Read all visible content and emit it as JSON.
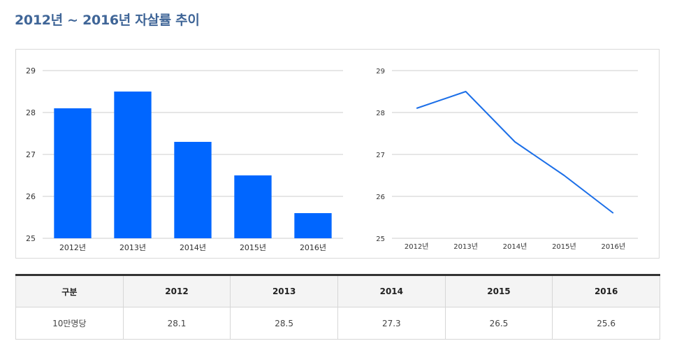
{
  "page": {
    "title": "2012년 ~ 2016년 자살률 추이"
  },
  "colors": {
    "title": "#3f6597",
    "bar": "#0066ff",
    "line": "#1c6fe8",
    "grid": "#cccccc"
  },
  "chart_data": [
    {
      "type": "bar",
      "categories": [
        "2012년",
        "2013년",
        "2014년",
        "2015년",
        "2016년"
      ],
      "values": [
        28.1,
        28.5,
        27.3,
        26.5,
        25.6
      ],
      "ylim": [
        25,
        29
      ],
      "yticks": [
        "25",
        "26",
        "27",
        "28",
        "29"
      ],
      "grid": true,
      "legend": "none"
    },
    {
      "type": "line",
      "categories": [
        "2012년",
        "2013년",
        "2014년",
        "2015년",
        "2016년"
      ],
      "values": [
        28.1,
        28.5,
        27.3,
        26.5,
        25.6
      ],
      "ylim": [
        25,
        29
      ],
      "yticks": [
        "25",
        "26",
        "27",
        "28",
        "29"
      ],
      "grid": true,
      "legend": "none"
    }
  ],
  "table": {
    "header": [
      "구분",
      "2012",
      "2013",
      "2014",
      "2015",
      "2016"
    ],
    "rows": [
      [
        "10만명당",
        "28.1",
        "28.5",
        "27.3",
        "26.5",
        "25.6"
      ]
    ]
  }
}
